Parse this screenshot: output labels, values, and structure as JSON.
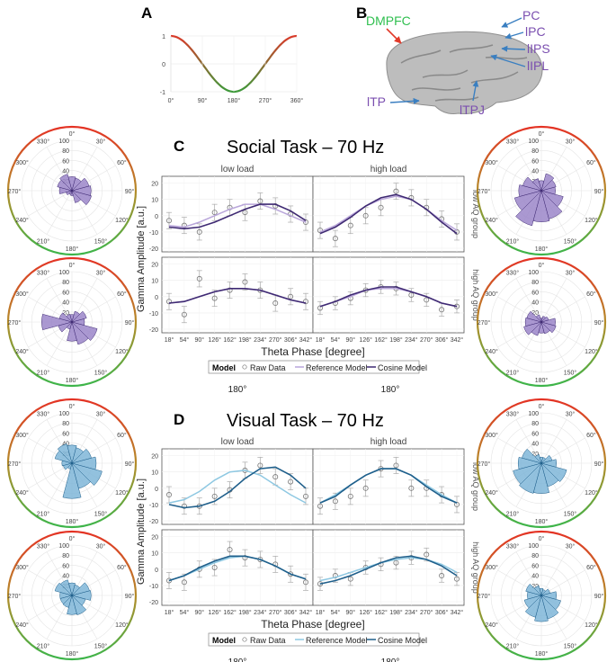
{
  "panel_letters": {
    "a": "A",
    "b": "B",
    "c": "C",
    "d": "D"
  },
  "colors": {
    "social_dark": "#3f2a73",
    "social_light": "#b9a6da",
    "social_fill": "#9b86c9",
    "visual_dark": "#1f5f8b",
    "visual_light": "#8ec8e2",
    "visual_fill": "#7fb6d8",
    "dmpfc": "#2fbf4f",
    "region": "#7b4fb0",
    "arrow_red": "#e23a2a",
    "arrow_blue": "#3a7fc1"
  },
  "brain": {
    "labels": [
      "DMPFC",
      "PC",
      "lPC",
      "lIPS",
      "lIPL",
      "lTP",
      "lTPJ"
    ]
  },
  "cosine": {
    "yticks": [
      "1",
      "0",
      "-1"
    ],
    "xticks": [
      "0°",
      "90°",
      "180°",
      "270°",
      "360°"
    ]
  },
  "rose": {
    "ring_labels": [
      "20",
      "40",
      "60",
      "80",
      "100"
    ],
    "angle_labels": [
      "0°",
      "30°",
      "60°",
      "90°",
      "120°",
      "150°",
      "180°",
      "210°",
      "240°",
      "270°",
      "300°",
      "330°"
    ]
  },
  "sections": [
    {
      "id": "social",
      "title": "Social Task – 70 Hz",
      "col_headers": [
        "low load",
        "high load"
      ],
      "row_labels": [
        "low AQ group",
        "high AQ group"
      ],
      "ylabel": "Gamma Amplitude [a.u.]",
      "xlabel": "Theta Phase [degree]",
      "legend": {
        "title": "Model",
        "raw": "Raw Data",
        "ref": "Reference Model",
        "cos": "Cosine Model"
      },
      "below_labels": [
        "180°",
        "180°"
      ]
    },
    {
      "id": "visual",
      "title": "Visual Task – 70 Hz",
      "col_headers": [
        "low load",
        "high load"
      ],
      "row_labels": [
        "low AQ group",
        "high AQ group"
      ],
      "ylabel": "Gamma Amplitude [a.u.]",
      "xlabel": "Theta Phase [degree]",
      "legend": {
        "title": "Model",
        "raw": "Raw Data",
        "ref": "Reference Model",
        "cos": "Cosine Model"
      },
      "below_labels": [
        "180°",
        "180°"
      ]
    }
  ],
  "chart_data": [
    {
      "type": "line",
      "title": "Social Task – 70 Hz",
      "xlabel": "Theta Phase [degree]",
      "ylabel": "Gamma Amplitude [a.u.]",
      "x": [
        "18°",
        "54°",
        "90°",
        "126°",
        "162°",
        "198°",
        "234°",
        "270°",
        "306°",
        "342°"
      ],
      "yticks": [
        -20,
        -10,
        0,
        10,
        20
      ],
      "ylim": [
        -20,
        22
      ],
      "legend": [
        "Raw Data",
        "Reference Model",
        "Cosine Model"
      ],
      "panels": [
        {
          "load": "low load",
          "group": "low AQ group",
          "raw": [
            -3,
            -6,
            -10,
            2,
            5,
            2,
            9,
            6,
            1,
            -4
          ],
          "err": [
            5,
            5,
            5,
            5,
            5,
            5,
            5,
            5,
            5,
            5
          ],
          "ref": [
            -6,
            -7,
            -4,
            0,
            4,
            7,
            7,
            4,
            0,
            -4
          ],
          "cos": [
            -7,
            -8,
            -7,
            -4,
            0,
            4,
            7,
            7,
            3,
            -3
          ]
        },
        {
          "load": "high load",
          "group": "low AQ group",
          "raw": [
            -9,
            -14,
            -6,
            0,
            5,
            15,
            11,
            5,
            -2,
            -10
          ],
          "err": [
            5,
            5,
            5,
            5,
            5,
            5,
            5,
            5,
            5,
            5
          ],
          "ref": [
            -10,
            -6,
            0,
            6,
            10,
            12,
            10,
            4,
            -3,
            -9
          ],
          "cos": [
            -11,
            -7,
            -1,
            6,
            11,
            13,
            10,
            4,
            -4,
            -11
          ]
        },
        {
          "load": "low load",
          "group": "high AQ group",
          "raw": [
            -3,
            -11,
            11,
            -1,
            4,
            9,
            4,
            -4,
            0,
            -3
          ],
          "err": [
            5,
            5,
            5,
            5,
            5,
            5,
            5,
            5,
            5,
            5
          ],
          "ref": [
            -4,
            -3,
            0,
            3,
            5,
            5,
            4,
            1,
            -2,
            -4
          ],
          "cos": [
            -4,
            -3,
            0,
            3,
            5,
            5,
            4,
            1,
            -2,
            -4
          ]
        },
        {
          "load": "high load",
          "group": "high AQ group",
          "raw": [
            -7,
            -4,
            -1,
            4,
            6,
            5,
            1,
            -2,
            -8,
            -6
          ],
          "err": [
            4,
            4,
            4,
            4,
            4,
            4,
            4,
            4,
            4,
            4
          ],
          "ref": [
            -6,
            -3,
            0,
            4,
            5,
            5,
            3,
            0,
            -4,
            -6
          ],
          "cos": [
            -6,
            -3,
            1,
            4,
            6,
            6,
            3,
            0,
            -4,
            -6
          ]
        }
      ]
    },
    {
      "type": "line",
      "title": "Visual Task – 70 Hz",
      "xlabel": "Theta Phase [degree]",
      "ylabel": "Gamma Amplitude [a.u.]",
      "x": [
        "18°",
        "54°",
        "90°",
        "126°",
        "162°",
        "198°",
        "234°",
        "270°",
        "306°",
        "342°"
      ],
      "yticks": [
        -20,
        -10,
        0,
        10,
        20
      ],
      "ylim": [
        -20,
        22
      ],
      "legend": [
        "Raw Data",
        "Reference Model",
        "Cosine Model"
      ],
      "panels": [
        {
          "load": "low load",
          "group": "low AQ group",
          "raw": [
            -4,
            -11,
            -11,
            -5,
            -1,
            11,
            14,
            7,
            4,
            -5
          ],
          "err": [
            5,
            5,
            5,
            5,
            5,
            5,
            5,
            5,
            5,
            5
          ],
          "ref": [
            -9,
            -7,
            -2,
            5,
            10,
            11,
            8,
            2,
            -4,
            -9
          ],
          "cos": [
            -10,
            -12,
            -11,
            -8,
            -2,
            6,
            12,
            13,
            8,
            0
          ]
        },
        {
          "load": "high load",
          "group": "low AQ group",
          "raw": [
            -11,
            -8,
            -5,
            0,
            12,
            14,
            0,
            0,
            -4,
            -10
          ],
          "err": [
            5,
            5,
            5,
            5,
            5,
            5,
            5,
            5,
            5,
            5
          ],
          "ref": [
            -9,
            -4,
            2,
            8,
            12,
            12,
            8,
            2,
            -4,
            -9
          ],
          "cos": [
            -9,
            -5,
            2,
            8,
            12,
            12,
            8,
            1,
            -5,
            -9
          ]
        },
        {
          "load": "low load",
          "group": "high AQ group",
          "raw": [
            -7,
            -8,
            0,
            1,
            12,
            7,
            6,
            3,
            -3,
            -8
          ],
          "err": [
            5,
            5,
            5,
            5,
            5,
            5,
            5,
            5,
            5,
            5
          ],
          "ref": [
            -7,
            -4,
            0,
            4,
            7,
            8,
            6,
            2,
            -3,
            -6
          ],
          "cos": [
            -7,
            -4,
            1,
            5,
            8,
            8,
            6,
            2,
            -3,
            -6
          ]
        },
        {
          "load": "high load",
          "group": "high AQ group",
          "raw": [
            -9,
            -4,
            -6,
            1,
            3,
            4,
            7,
            9,
            -4,
            -6
          ],
          "err": [
            4,
            4,
            4,
            4,
            4,
            4,
            4,
            4,
            4,
            4
          ],
          "ref": [
            -7,
            -5,
            -2,
            1,
            4,
            6,
            7,
            6,
            3,
            -2
          ],
          "cos": [
            -9,
            -7,
            -4,
            0,
            4,
            7,
            8,
            6,
            2,
            -4
          ]
        }
      ]
    },
    {
      "type": "rose",
      "title": "Theta phase distribution",
      "angles": [
        0,
        30,
        60,
        90,
        120,
        150,
        180,
        210,
        240,
        270,
        300,
        330
      ],
      "rlim": [
        0,
        100
      ],
      "roses": [
        {
          "id": "social-left-top",
          "values": [
            28,
            34,
            30,
            25,
            12,
            8,
            10,
            25,
            40,
            38,
            35,
            26
          ]
        },
        {
          "id": "social-left-bottom",
          "values": [
            15,
            16,
            26,
            60,
            28,
            15,
            38,
            46,
            52,
            25,
            30,
            22
          ]
        },
        {
          "id": "social-right-top",
          "values": [
            20,
            25,
            38,
            45,
            55,
            72,
            62,
            58,
            45,
            28,
            30,
            35
          ]
        },
        {
          "id": "social-right-bottom",
          "values": [
            8,
            15,
            30,
            32,
            36,
            28,
            22,
            24,
            30,
            28,
            15,
            12
          ]
        },
        {
          "id": "visual-left-top",
          "values": [
            36,
            40,
            35,
            20,
            18,
            12,
            70,
            52,
            62,
            48,
            40,
            32
          ]
        },
        {
          "id": "visual-left-bottom",
          "values": [
            25,
            32,
            35,
            24,
            24,
            25,
            38,
            40,
            28,
            38,
            36,
            22
          ]
        },
        {
          "id": "visual-right-top",
          "values": [
            12,
            18,
            40,
            46,
            58,
            62,
            60,
            48,
            52,
            30,
            22,
            12
          ]
        },
        {
          "id": "visual-right-bottom",
          "values": [
            14,
            20,
            32,
            28,
            35,
            45,
            52,
            48,
            40,
            30,
            18,
            12
          ]
        }
      ]
    }
  ]
}
